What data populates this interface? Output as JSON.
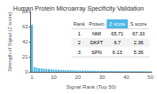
{
  "chart_data": {
    "type": "bar",
    "title": "Human Protein Microarray Specificity Validation",
    "xlabel": "Signal Rank (Top 50)",
    "ylabel": "Strength of Signal (Z score)",
    "categories": [
      "1",
      null,
      null,
      null,
      null,
      null,
      null,
      null,
      null,
      "10",
      null,
      null,
      null,
      null,
      null,
      null,
      null,
      null,
      null,
      "20",
      null,
      null,
      null,
      null,
      null,
      null,
      null,
      null,
      null,
      "30",
      null,
      null,
      null,
      null,
      null,
      null,
      null,
      null,
      null,
      "40",
      null,
      null,
      null,
      null,
      null,
      null,
      null,
      null,
      null,
      "50"
    ],
    "values": [
      65.71,
      6.7,
      6.13,
      5.2,
      4.8,
      4.3,
      4.0,
      3.8,
      3.5,
      3.3,
      3.1,
      2.9,
      2.7,
      2.6,
      2.5,
      2.4,
      2.3,
      2.2,
      2.1,
      2.0,
      1.9,
      1.85,
      1.8,
      1.75,
      1.7,
      1.65,
      1.6,
      1.55,
      1.5,
      1.45,
      1.4,
      1.38,
      1.35,
      1.32,
      1.3,
      1.28,
      1.25,
      1.22,
      1.2,
      1.18,
      1.15,
      1.12,
      1.1,
      1.08,
      1.05,
      1.03,
      1.0,
      0.98,
      0.95,
      0.92
    ],
    "color": "#4db8e8",
    "ylim": [
      0,
      84
    ],
    "yticks": [
      0,
      21,
      42,
      63,
      84
    ],
    "grid": false,
    "table": {
      "headers": [
        "Rank",
        "Protein",
        "Z score",
        "S score"
      ],
      "rows": [
        [
          "1",
          "NMI",
          "65.71",
          "67.33"
        ],
        [
          "2",
          "DKFT",
          "6.7",
          "2.36"
        ],
        [
          "3",
          "SPN",
          "6.13",
          "5.36"
        ]
      ]
    }
  }
}
